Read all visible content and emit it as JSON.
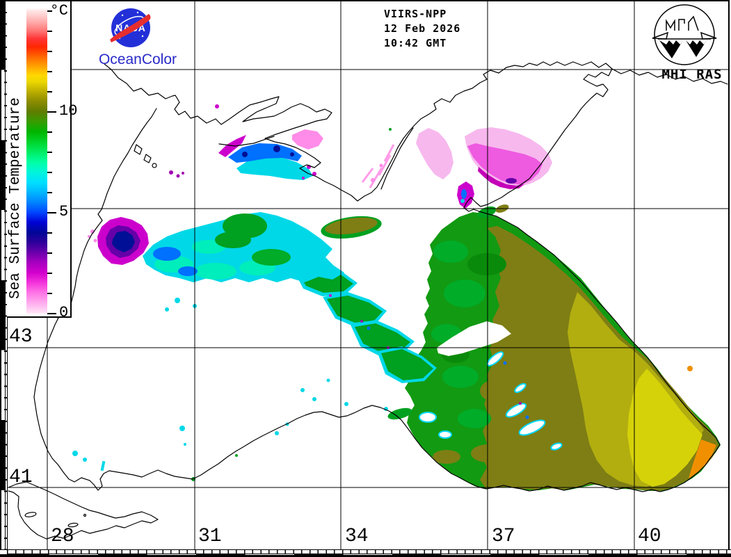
{
  "branding": {
    "nasa_text": "NASA",
    "oceancolor_label": "OceanColor",
    "mhi_label": "MHI RAS"
  },
  "header": {
    "satellite": "VIIRS-NPP",
    "date": "12 Feb 2026",
    "time": "10:42 GMT"
  },
  "colorbar": {
    "title": "Sea Surface Temperature",
    "units": "°C",
    "min_c": 0,
    "max_c": 15,
    "ticks": [
      {
        "t": 0,
        "label": "0"
      },
      {
        "t": 1
      },
      {
        "t": 2
      },
      {
        "t": 3
      },
      {
        "t": 4
      },
      {
        "t": 5,
        "label": "5"
      },
      {
        "t": 6
      },
      {
        "t": 7
      },
      {
        "t": 8
      },
      {
        "t": 9
      },
      {
        "t": 10,
        "label": "10"
      },
      {
        "t": 11
      },
      {
        "t": 12
      },
      {
        "t": 13
      },
      {
        "t": 14
      },
      {
        "t": 15
      }
    ],
    "stops": [
      {
        "p": 0.0,
        "c": "#ffffff"
      },
      {
        "p": 0.005,
        "c": "#ffe2f6"
      },
      {
        "p": 0.038,
        "c": "#ffaaee"
      },
      {
        "p": 0.071,
        "c": "#ff74e6"
      },
      {
        "p": 0.104,
        "c": "#f232da"
      },
      {
        "p": 0.137,
        "c": "#d200cc"
      },
      {
        "p": 0.17,
        "c": "#a600c0"
      },
      {
        "p": 0.202,
        "c": "#6a00ac"
      },
      {
        "p": 0.235,
        "c": "#2e009a"
      },
      {
        "p": 0.268,
        "c": "#000698"
      },
      {
        "p": 0.301,
        "c": "#0002d6"
      },
      {
        "p": 0.334,
        "c": "#0048ff"
      },
      {
        "p": 0.367,
        "c": "#0086ff"
      },
      {
        "p": 0.4,
        "c": "#00b8ff"
      },
      {
        "p": 0.432,
        "c": "#00e0ff"
      },
      {
        "p": 0.465,
        "c": "#00f6da"
      },
      {
        "p": 0.498,
        "c": "#00ffa2"
      },
      {
        "p": 0.531,
        "c": "#00ec62"
      },
      {
        "p": 0.564,
        "c": "#00d42a"
      },
      {
        "p": 0.597,
        "c": "#00b400"
      },
      {
        "p": 0.63,
        "c": "#389c00"
      },
      {
        "p": 0.663,
        "c": "#607c00"
      },
      {
        "p": 0.696,
        "c": "#8c8c00"
      },
      {
        "p": 0.728,
        "c": "#bcae00"
      },
      {
        "p": 0.761,
        "c": "#ecd800"
      },
      {
        "p": 0.781,
        "c": "#ffd800"
      },
      {
        "p": 0.814,
        "c": "#ff9c00"
      },
      {
        "p": 0.847,
        "c": "#ff5c00"
      },
      {
        "p": 0.873,
        "c": "#ff2800"
      },
      {
        "p": 0.9,
        "c": "#ff3434"
      },
      {
        "p": 0.926,
        "c": "#ff7474"
      },
      {
        "p": 0.959,
        "c": "#ffb2b2"
      },
      {
        "p": 0.992,
        "c": "#ffe6e6"
      },
      {
        "p": 1.0,
        "c": "#fffafa"
      }
    ]
  },
  "map": {
    "lat_labels": [
      {
        "text": "43"
      },
      {
        "text": "41"
      }
    ],
    "lon_labels": [
      {
        "text": "28"
      },
      {
        "text": "31"
      },
      {
        "text": "34"
      },
      {
        "text": "37"
      },
      {
        "text": "40"
      }
    ]
  },
  "palette": {
    "nasa_blue": "#2330d8",
    "nasa_red": "#e62e2e",
    "oceancolor_blue": "#2a2ac8",
    "grid_black": "#000000"
  }
}
